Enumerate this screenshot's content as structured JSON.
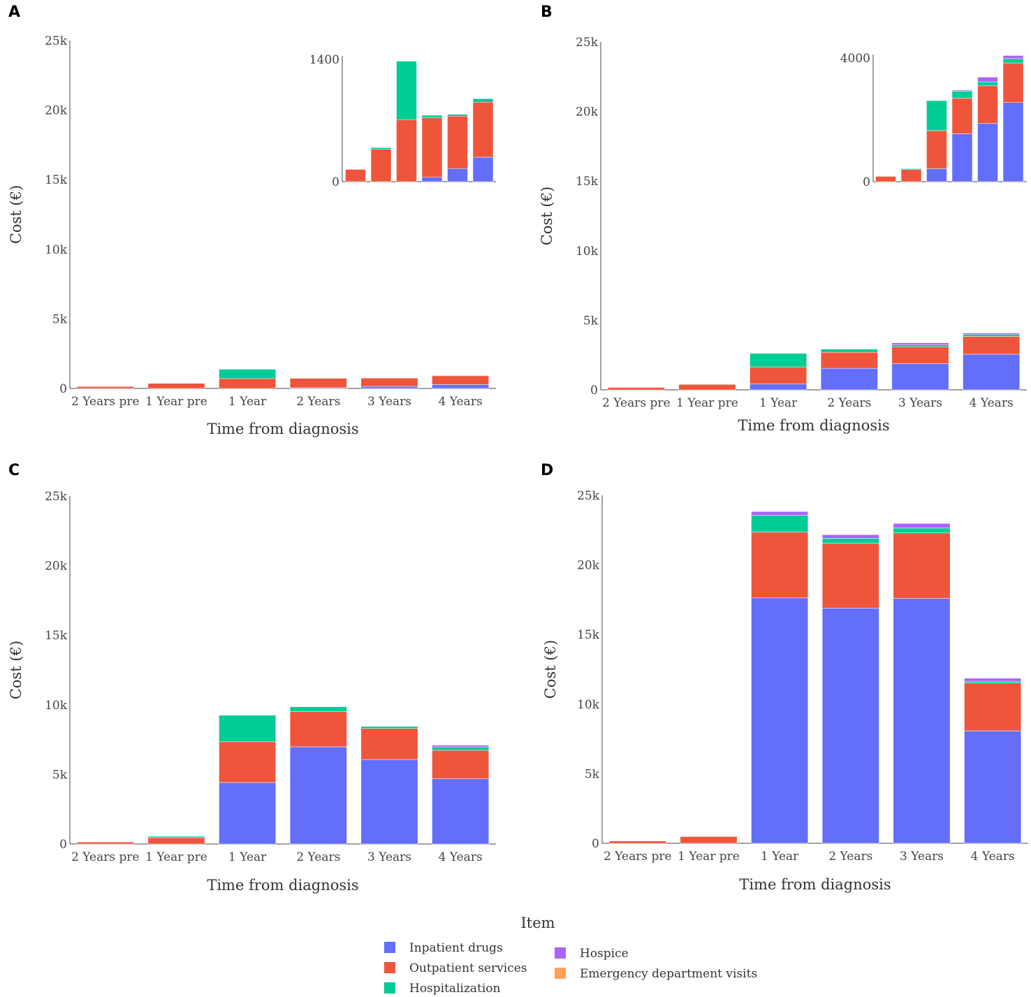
{
  "colors": {
    "Inpatient drugs": "#636efa",
    "Outpatient services": "#ef553b",
    "Hospitalization": "#00cc96",
    "Hospice": "#ab63fa",
    "Emergency department visits": "#ffa15a"
  },
  "legend": {
    "title": "Item",
    "items": [
      {
        "name": "Inpatient drugs",
        "color": "#636efa"
      },
      {
        "name": "Outpatient services",
        "color": "#ef553b"
      },
      {
        "name": "Hospitalization",
        "color": "#00cc96"
      },
      {
        "name": "Hospice",
        "color": "#ab63fa"
      },
      {
        "name": "Emergency department visits",
        "color": "#ffa15a"
      }
    ]
  },
  "chart_data": [
    {
      "panel": "A",
      "type": "bar",
      "stacked": true,
      "xlabel": "Time from diagnosis",
      "ylabel": "Cost (€)",
      "ylim": [
        0,
        25000
      ],
      "yticks": [
        0,
        5000,
        10000,
        15000,
        20000,
        25000
      ],
      "ytick_labels": [
        "0",
        "5k",
        "10k",
        "15k",
        "20k",
        "25k"
      ],
      "categories": [
        "2 Years pre",
        "1 Year pre",
        "1 Year",
        "2 Years",
        "3 Years",
        "4 Years"
      ],
      "series": [
        {
          "name": "Inpatient drugs",
          "values": [
            0,
            0,
            0,
            50,
            150,
            280
          ]
        },
        {
          "name": "Outpatient services",
          "values": [
            140,
            370,
            710,
            680,
            600,
            630
          ]
        },
        {
          "name": "Hospitalization",
          "values": [
            0,
            20,
            670,
            30,
            20,
            40
          ]
        },
        {
          "name": "Hospice",
          "values": [
            0,
            0,
            0,
            0,
            0,
            0
          ]
        },
        {
          "name": "Emergency department visits",
          "values": [
            0,
            0,
            0,
            0,
            0,
            0
          ]
        }
      ],
      "inset": {
        "ylim": [
          0,
          1400
        ],
        "ytick_labels": [
          "0",
          "1400"
        ],
        "yticks": [
          0,
          1400
        ]
      }
    },
    {
      "panel": "B",
      "type": "bar",
      "stacked": true,
      "xlabel": "Time from diagnosis",
      "ylabel": "Cost (€)",
      "ylim": [
        0,
        25000
      ],
      "yticks": [
        0,
        5000,
        10000,
        15000,
        20000,
        25000
      ],
      "ytick_labels": [
        "0",
        "5k",
        "10k",
        "15k",
        "20k",
        "25k"
      ],
      "categories": [
        "2 Years pre",
        "1 Year pre",
        "1 Year",
        "2 Years",
        "3 Years",
        "4 Years"
      ],
      "series": [
        {
          "name": "Inpatient drugs",
          "values": [
            0,
            0,
            420,
            1550,
            1880,
            2560
          ]
        },
        {
          "name": "Outpatient services",
          "values": [
            170,
            390,
            1230,
            1150,
            1220,
            1280
          ]
        },
        {
          "name": "Hospitalization",
          "values": [
            0,
            30,
            970,
            230,
            130,
            140
          ]
        },
        {
          "name": "Hospice",
          "values": [
            0,
            0,
            0,
            30,
            150,
            100
          ]
        },
        {
          "name": "Emergency department visits",
          "values": [
            0,
            0,
            0,
            0,
            0,
            0
          ]
        }
      ],
      "inset": {
        "ylim": [
          0,
          4000
        ],
        "ytick_labels": [
          "0",
          "4000"
        ],
        "yticks": [
          0,
          4000
        ]
      }
    },
    {
      "panel": "C",
      "type": "bar",
      "stacked": true,
      "xlabel": "Time from diagnosis",
      "ylabel": "Cost (€)",
      "ylim": [
        0,
        25000
      ],
      "yticks": [
        0,
        5000,
        10000,
        15000,
        20000,
        25000
      ],
      "ytick_labels": [
        "0",
        "5k",
        "10k",
        "15k",
        "20k",
        "25k"
      ],
      "categories": [
        "2 Years pre",
        "1 Year pre",
        "1 Year",
        "2 Years",
        "3 Years",
        "4 Years"
      ],
      "series": [
        {
          "name": "Inpatient drugs",
          "values": [
            0,
            0,
            4420,
            6980,
            6070,
            4690
          ]
        },
        {
          "name": "Outpatient services",
          "values": [
            140,
            450,
            2920,
            2530,
            2230,
            2040
          ]
        },
        {
          "name": "Hospitalization",
          "values": [
            0,
            100,
            1910,
            350,
            150,
            250
          ]
        },
        {
          "name": "Hospice",
          "values": [
            0,
            0,
            0,
            0,
            0,
            120
          ]
        },
        {
          "name": "Emergency department visits",
          "values": [
            0,
            0,
            0,
            0,
            0,
            0
          ]
        }
      ]
    },
    {
      "panel": "D",
      "type": "bar",
      "stacked": true,
      "xlabel": "Time from diagnosis",
      "ylabel": "Cost (€)",
      "ylim": [
        0,
        25000
      ],
      "yticks": [
        0,
        5000,
        10000,
        15000,
        20000,
        25000
      ],
      "ytick_labels": [
        "0",
        "5k",
        "10k",
        "15k",
        "20k",
        "25k"
      ],
      "categories": [
        "2 Years pre",
        "1 Year pre",
        "1 Year",
        "2 Years",
        "3 Years",
        "4 Years"
      ],
      "series": [
        {
          "name": "Inpatient drugs",
          "values": [
            0,
            0,
            17630,
            16900,
            17600,
            8080
          ]
        },
        {
          "name": "Outpatient services",
          "values": [
            170,
            480,
            4720,
            4660,
            4700,
            3430
          ]
        },
        {
          "name": "Hospitalization",
          "values": [
            0,
            0,
            1210,
            360,
            350,
            130
          ]
        },
        {
          "name": "Hospice",
          "values": [
            0,
            0,
            280,
            250,
            330,
            220
          ]
        },
        {
          "name": "Emergency department visits",
          "values": [
            0,
            0,
            0,
            0,
            0,
            0
          ]
        }
      ]
    }
  ]
}
